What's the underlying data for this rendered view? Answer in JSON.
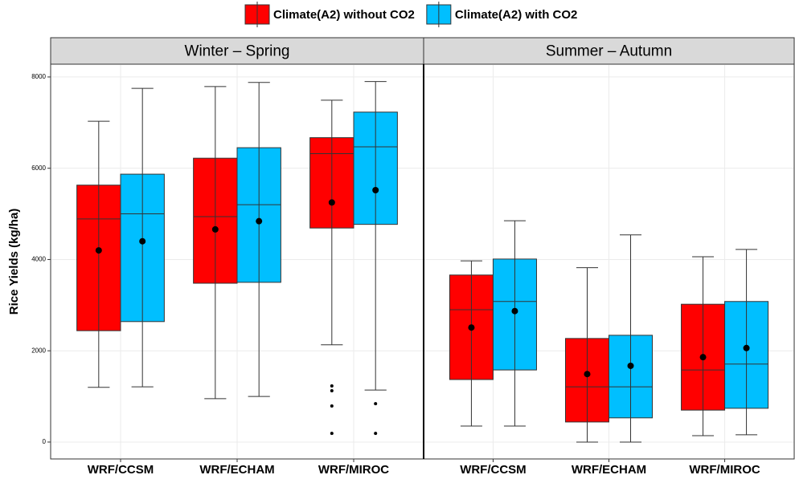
{
  "chart_data": {
    "type": "box",
    "ylabel": "Rice Yields (kg/ha)",
    "ylim": [
      -370,
      8280
    ],
    "yticks": [
      0,
      2000,
      4000,
      6000,
      8000
    ],
    "grid": true,
    "legend": "top",
    "series": [
      {
        "name": "Climate(A2) without CO2",
        "color": "#ff0000"
      },
      {
        "name": "Climate(A2) with CO2",
        "color": "#00bfff"
      }
    ],
    "facets": [
      {
        "title": "Winter – Spring",
        "categories": [
          "WRF/CCSM",
          "WRF/ECHAM",
          "WRF/MIROC"
        ],
        "stats": [
          [
            {
              "min": 1200,
              "q1": 2440,
              "median": 4890,
              "q3": 5630,
              "max": 7030,
              "mean": 4200
            },
            {
              "min": 950,
              "q1": 3480,
              "median": 4940,
              "q3": 6220,
              "max": 7790,
              "mean": 4660
            },
            {
              "min": 2130,
              "q1": 4690,
              "median": 6320,
              "q3": 6670,
              "max": 7490,
              "mean": 5250,
              "outliers": [
                1230,
                1125,
                790,
                190
              ]
            }
          ],
          [
            {
              "min": 1210,
              "q1": 2640,
              "median": 5000,
              "q3": 5870,
              "max": 7750,
              "mean": 4400
            },
            {
              "min": 1000,
              "q1": 3500,
              "median": 5200,
              "q3": 6450,
              "max": 7880,
              "mean": 4840
            },
            {
              "min": 1140,
              "q1": 4770,
              "median": 6470,
              "q3": 7230,
              "max": 7900,
              "mean": 5520,
              "outliers": [
                840,
                190
              ]
            }
          ]
        ]
      },
      {
        "title": "Summer – Autumn",
        "categories": [
          "WRF/CCSM",
          "WRF/ECHAM",
          "WRF/MIROC"
        ],
        "stats": [
          [
            {
              "min": 350,
              "q1": 1370,
              "median": 2900,
              "q3": 3660,
              "max": 3970,
              "mean": 2510
            },
            {
              "min": 0,
              "q1": 440,
              "median": 1210,
              "q3": 2270,
              "max": 3820,
              "mean": 1490
            },
            {
              "min": 140,
              "q1": 700,
              "median": 1580,
              "q3": 3020,
              "max": 4060,
              "mean": 1860
            }
          ],
          [
            {
              "min": 350,
              "q1": 1580,
              "median": 3080,
              "q3": 4010,
              "max": 4850,
              "mean": 2870
            },
            {
              "min": 0,
              "q1": 530,
              "median": 1210,
              "q3": 2340,
              "max": 4540,
              "mean": 1670
            },
            {
              "min": 160,
              "q1": 740,
              "median": 1710,
              "q3": 3080,
              "max": 4220,
              "mean": 2060
            }
          ]
        ]
      }
    ]
  }
}
